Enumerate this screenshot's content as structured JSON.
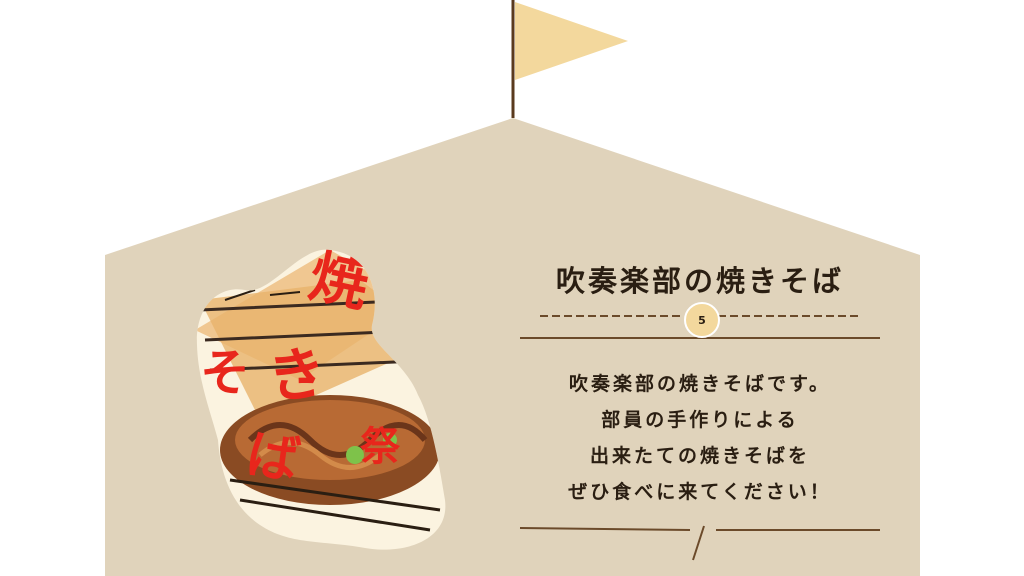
{
  "card": {
    "title": "吹奏楽部の焼きそば",
    "number": "5",
    "description": [
      "吹奏楽部の焼きそばです。",
      "部員の手作りによる",
      "出来たての焼きそばを",
      "ぜひ食べに来てください！"
    ]
  },
  "illustration": {
    "label": "焼きそば",
    "shape": "blob-photo-frame"
  },
  "colors": {
    "background": "#ffffff",
    "house": "#e0d3bb",
    "flag": "#f3d89d",
    "pole": "#5a3a1e",
    "text": "#2a1e12",
    "accent_red": "#e8261c",
    "line": "#6b4a2a"
  },
  "icons": [
    "flag-icon",
    "badge-icon"
  ]
}
